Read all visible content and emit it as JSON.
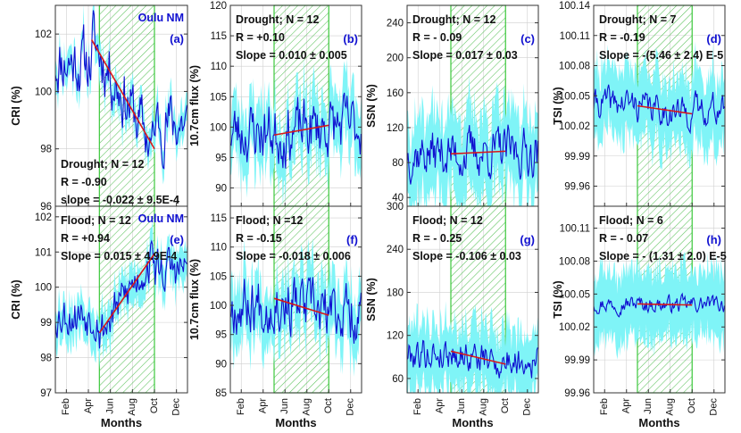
{
  "figure": {
    "x_tick_labels": [
      "Feb",
      "Apr",
      "Jun",
      "Aug",
      "Oct",
      "Dec"
    ],
    "x_axis_label": "Months",
    "colors": {
      "line": "#1010d0",
      "band": "#7ff4f7",
      "shade_border": "#3cc83c",
      "hatch": "#59c159",
      "trend": "#d81818",
      "grid": "#cfcfcf"
    }
  },
  "chart_data": [
    {
      "id": "a",
      "type": "line",
      "panel_label": "(a)",
      "extra_label": "Oulu NM",
      "ylabel": "CRI (%)",
      "ylim": [
        96,
        103
      ],
      "yticks": [
        96,
        98,
        100,
        102
      ],
      "annotations": [
        "Drought; N = 12",
        "R = -0.90",
        "slope = -0.022 ± 9.5E-4"
      ],
      "trend": {
        "x": [
          3.3,
          9.0
        ],
        "y": [
          101.8,
          98.0
        ]
      },
      "base": 100.3,
      "amp": 0.9,
      "band": 0.5,
      "seed": 11
    },
    {
      "id": "b",
      "type": "line",
      "panel_label": "(b)",
      "ylabel": "10.7cm flux (%)",
      "ylim": [
        87,
        120
      ],
      "yticks": [
        90,
        95,
        100,
        105,
        110,
        115,
        120
      ],
      "annotations": [
        "Drought; N = 12",
        "R = +0.10",
        "Slope = 0.010 ± 0.005"
      ],
      "trend": {
        "x": [
          4.0,
          9.0
        ],
        "y": [
          98.7,
          100.3
        ]
      },
      "base": 99.8,
      "amp": 4.0,
      "band": 5.0,
      "seed": 23
    },
    {
      "id": "c",
      "type": "line",
      "panel_label": "(c)",
      "ylabel": "SSN (%)",
      "ylim": [
        30,
        260
      ],
      "yticks": [
        40,
        80,
        120,
        160,
        200,
        240
      ],
      "annotations": [
        "Drought; N = 12",
        "R = - 0.09",
        "Slope = 0.017 ± 0.03"
      ],
      "trend": {
        "x": [
          4.0,
          9.0
        ],
        "y": [
          90,
          93
        ]
      },
      "base": 92,
      "amp": 22,
      "band": 45,
      "seed": 37
    },
    {
      "id": "d",
      "type": "line",
      "panel_label": "(d)",
      "ylabel": "TSI (%)",
      "ylim": [
        99.94,
        100.14
      ],
      "yticks": [
        99.96,
        99.99,
        100.02,
        100.05,
        100.08,
        100.11,
        100.14
      ],
      "annotations": [
        "Drought; N = 7",
        "R = -0.19",
        "Slope = -(5.46 ± 2.4) E-5"
      ],
      "trend": {
        "x": [
          4.0,
          9.0
        ],
        "y": [
          100.04,
          100.032
        ]
      },
      "base": 100.045,
      "amp": 0.012,
      "band": 0.035,
      "seed": 41
    },
    {
      "id": "e",
      "type": "line",
      "panel_label": "(e)",
      "extra_label": "Oulu NM",
      "ylabel": "CRI (%)",
      "ylim": [
        97,
        102.3
      ],
      "yticks": [
        97,
        98,
        99,
        100,
        101,
        102
      ],
      "annotations": [
        "Flood; N = 12",
        "R = +0.94",
        "Slope = 0.015 ± 4.9E-4"
      ],
      "trend": {
        "x": [
          4.0,
          9.0
        ],
        "y": [
          98.7,
          100.95
        ]
      },
      "base": 99.8,
      "amp": 0.5,
      "band": 0.5,
      "seed": 53
    },
    {
      "id": "f",
      "type": "line",
      "panel_label": "(f)",
      "ylabel": "10.7cm flux (%)",
      "ylim": [
        85,
        117
      ],
      "yticks": [
        85,
        90,
        95,
        100,
        105,
        110,
        115
      ],
      "annotations": [
        "Flood; N =12",
        "R = -0.15",
        "Slope = -0.018 ± 0.006"
      ],
      "trend": {
        "x": [
          4.0,
          9.0
        ],
        "y": [
          101.2,
          98.3
        ]
      },
      "base": 99.5,
      "amp": 4.0,
      "band": 5.0,
      "seed": 67
    },
    {
      "id": "g",
      "type": "line",
      "panel_label": "(g)",
      "ylabel": "SSN (%)",
      "ylim": [
        40,
        300
      ],
      "yticks": [
        60,
        120,
        180,
        240,
        300
      ],
      "annotations": [
        "Flood; N = 12",
        "R = - 0.25",
        "Slope = -0.106 ± 0.03"
      ],
      "trend": {
        "x": [
          4.0,
          9.0
        ],
        "y": [
          98,
          80
        ]
      },
      "base": 92,
      "amp": 18,
      "band": 45,
      "seed": 79
    },
    {
      "id": "h",
      "type": "line",
      "panel_label": "(h)",
      "ylabel": "TSI (%)",
      "ylim": [
        99.96,
        100.13
      ],
      "yticks": [
        99.96,
        99.99,
        100.02,
        100.05,
        100.08,
        100.11
      ],
      "annotations": [
        "Flood; N = 6",
        "R = - 0.07",
        "Slope = - (1.31 ± 2.0) E-5"
      ],
      "trend": {
        "x": [
          4.0,
          9.0
        ],
        "y": [
          100.041,
          100.04
        ]
      },
      "base": 100.042,
      "amp": 0.006,
      "band": 0.03,
      "seed": 97
    }
  ]
}
